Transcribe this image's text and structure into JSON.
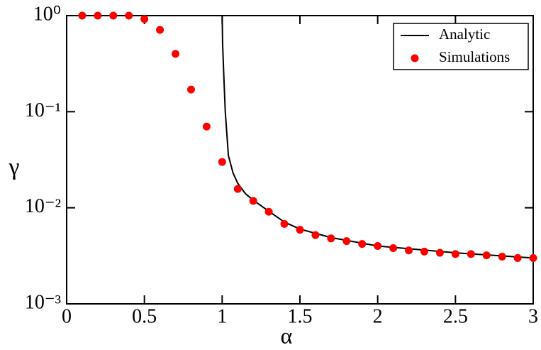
{
  "chart_data": {
    "type": "line",
    "x_label": "α",
    "y_label": "γ",
    "yscale": "log",
    "xlim": [
      0,
      3
    ],
    "ylim": [
      0.001,
      1
    ],
    "xticks": [
      0,
      0.5,
      1,
      1.5,
      2,
      2.5,
      3
    ],
    "yticks": [
      {
        "value": 0.001,
        "label": "10⁻³"
      },
      {
        "value": 0.01,
        "label": "10⁻²"
      },
      {
        "value": 0.1,
        "label": "10⁻¹"
      },
      {
        "value": 1,
        "label": "10⁰"
      }
    ],
    "legend": "upper right",
    "series": [
      {
        "name": "Analytic",
        "type": "line",
        "color": "#000000",
        "x": [
          0,
          1,
          1.003,
          1.01,
          1.02,
          1.04,
          1.07,
          1.1,
          1.15,
          1.2,
          1.3,
          1.4,
          1.5,
          1.7,
          2,
          2.5,
          3
        ],
        "values": [
          1,
          1,
          0.5,
          0.25,
          0.1,
          0.035,
          0.023,
          0.018,
          0.014,
          0.012,
          0.0092,
          0.0071,
          0.006,
          0.0049,
          0.004,
          0.0034,
          0.003
        ]
      },
      {
        "name": "Simulations",
        "type": "scatter",
        "color": "#ff0000",
        "x": [
          0.1,
          0.2,
          0.3,
          0.4,
          0.5,
          0.6,
          0.7,
          0.8,
          0.9,
          1.0,
          1.1,
          1.2,
          1.3,
          1.4,
          1.5,
          1.6,
          1.7,
          1.8,
          1.9,
          2.0,
          2.1,
          2.2,
          2.3,
          2.4,
          2.5,
          2.6,
          2.7,
          2.8,
          2.9,
          3.0
        ],
        "values": [
          1,
          1,
          1,
          1,
          0.92,
          0.71,
          0.4,
          0.17,
          0.07,
          0.03,
          0.0157,
          0.0118,
          0.0091,
          0.0068,
          0.0059,
          0.0052,
          0.0048,
          0.0045,
          0.0042,
          0.004,
          0.0038,
          0.0036,
          0.0035,
          0.0034,
          0.0033,
          0.0033,
          0.0032,
          0.0031,
          0.003,
          0.003
        ]
      }
    ]
  }
}
